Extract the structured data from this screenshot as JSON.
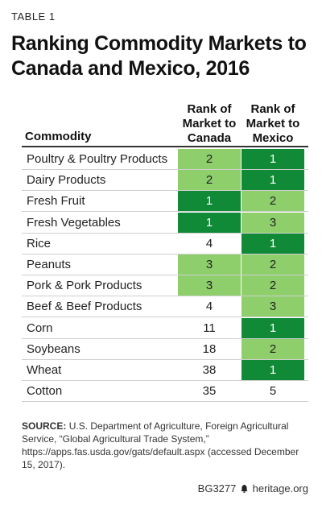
{
  "table_label": "TABLE 1",
  "title": "Ranking Commodity Markets to Canada and Mexico, 2016",
  "headers": {
    "commodity": "Commodity",
    "canada": "Rank of Market to Canada",
    "mexico": "Rank of Market to Mexico"
  },
  "colors": {
    "dark_green": "#118a38",
    "light_green": "#8ecf6c"
  },
  "rows": [
    {
      "commodity": "Poultry & Poultry Products",
      "canada": "2",
      "canada_shade": "light",
      "mexico": "1",
      "mexico_shade": "dark"
    },
    {
      "commodity": "Dairy Products",
      "canada": "2",
      "canada_shade": "light",
      "mexico": "1",
      "mexico_shade": "dark"
    },
    {
      "commodity": "Fresh Fruit",
      "canada": "1",
      "canada_shade": "dark",
      "mexico": "2",
      "mexico_shade": "light"
    },
    {
      "commodity": "Fresh Vegetables",
      "canada": "1",
      "canada_shade": "dark",
      "mexico": "3",
      "mexico_shade": "light"
    },
    {
      "commodity": "Rice",
      "canada": "4",
      "canada_shade": "none",
      "mexico": "1",
      "mexico_shade": "dark"
    },
    {
      "commodity": "Peanuts",
      "canada": "3",
      "canada_shade": "light",
      "mexico": "2",
      "mexico_shade": "light"
    },
    {
      "commodity": "Pork & Pork Products",
      "canada": "3",
      "canada_shade": "light",
      "mexico": "2",
      "mexico_shade": "light"
    },
    {
      "commodity": "Beef & Beef Products",
      "canada": "4",
      "canada_shade": "none",
      "mexico": "3",
      "mexico_shade": "light"
    },
    {
      "commodity": "Corn",
      "canada": "11",
      "canada_shade": "none",
      "mexico": "1",
      "mexico_shade": "dark"
    },
    {
      "commodity": "Soybeans",
      "canada": "18",
      "canada_shade": "none",
      "mexico": "2",
      "mexico_shade": "light"
    },
    {
      "commodity": "Wheat",
      "canada": "38",
      "canada_shade": "none",
      "mexico": "1",
      "mexico_shade": "dark"
    },
    {
      "commodity": "Cotton",
      "canada": "35",
      "canada_shade": "none",
      "mexico": "5",
      "mexico_shade": "none"
    }
  ],
  "source": {
    "label": "SOURCE:",
    "text": "U.S. Department of Agriculture, Foreign Agricultural Service, “Global Agricultural Trade System,” https://apps.fas.usda.gov/gats/default.aspx (accessed December 15, 2017)."
  },
  "footer": {
    "code": "BG3277",
    "site": "heritage.org",
    "logo_icon": "bell-icon"
  }
}
